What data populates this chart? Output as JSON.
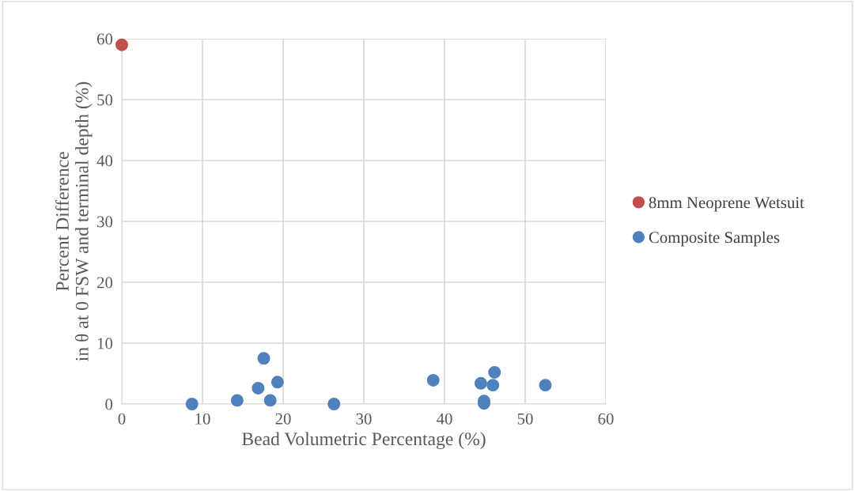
{
  "chart_data": {
    "type": "scatter",
    "xlabel": "Bead Volumetric Percentage (%)",
    "ylabel": "Percent Difference\nin θ at 0 FSW and terminal depth (%)",
    "xlim": [
      0,
      60
    ],
    "xticks": [
      0,
      10,
      20,
      30,
      40,
      50,
      60
    ],
    "ylim": [
      0,
      60
    ],
    "yticks": [
      0,
      10,
      20,
      30,
      40,
      50,
      60
    ],
    "grid": true,
    "legend": "right",
    "marker": "circle",
    "series": [
      {
        "name": "8mm Neoprene Wetsuit",
        "color": "#c0504d",
        "x": [
          0
        ],
        "values": [
          59.0
        ]
      },
      {
        "name": "Composite Samples",
        "color": "#4f81bd",
        "x": [
          8.7,
          14.3,
          16.9,
          17.6,
          18.4,
          19.3,
          26.3,
          38.6,
          44.5,
          44.9,
          44.9,
          46.0,
          46.2,
          52.5
        ],
        "values": [
          0,
          0.6,
          2.6,
          7.5,
          0.6,
          3.6,
          0,
          3.9,
          3.4,
          0.5,
          0.1,
          3.1,
          5.2,
          3.1
        ]
      }
    ]
  }
}
